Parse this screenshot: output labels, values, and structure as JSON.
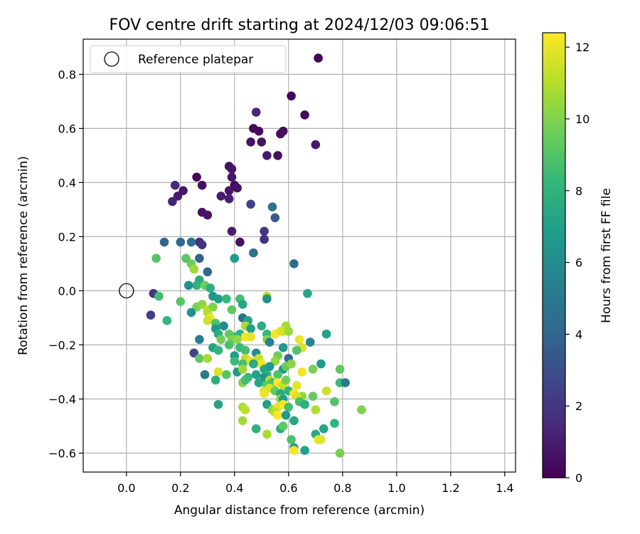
{
  "chart_data": {
    "type": "scatter",
    "title": "FOV centre drift starting at 2024/12/03 09:06:51",
    "xlabel": "Angular distance from reference (arcmin)",
    "ylabel": "Rotation from reference (arcmin)",
    "xlim": [
      -0.16,
      1.44
    ],
    "ylim": [
      -0.67,
      0.93
    ],
    "xticks": [
      0.0,
      0.2,
      0.4,
      0.6,
      0.8,
      1.0,
      1.2,
      1.4
    ],
    "xtick_labels": [
      "0.0",
      "0.2",
      "0.4",
      "0.6",
      "0.8",
      "1.0",
      "1.2",
      "1.4"
    ],
    "yticks": [
      -0.6,
      -0.4,
      -0.2,
      0.0,
      0.2,
      0.4,
      0.6,
      0.8
    ],
    "ytick_labels": [
      "−0.6",
      "−0.4",
      "−0.2",
      "0.0",
      "0.2",
      "0.4",
      "0.6",
      "0.8"
    ],
    "grid": true,
    "legend": {
      "placement": "top-left",
      "entries": [
        "Reference platepar"
      ]
    },
    "reference_point": {
      "x": 0.0,
      "y": 0.0,
      "label": "Reference platepar"
    },
    "colorbar": {
      "label": "Hours from first FF file",
      "colormap": "viridis",
      "range": [
        0,
        12.4
      ],
      "ticks": [
        0,
        2,
        4,
        6,
        8,
        10,
        12
      ],
      "tick_labels": [
        "0",
        "2",
        "4",
        "6",
        "8",
        "10",
        "12"
      ]
    },
    "colormap_stops": [
      "#440154",
      "#482878",
      "#3e4989",
      "#31688e",
      "#26828e",
      "#1f9e89",
      "#35b779",
      "#6ece58",
      "#b5de2b",
      "#fde725"
    ],
    "points": [
      [
        0.71,
        0.86,
        0.1
      ],
      [
        0.61,
        0.72,
        0.2
      ],
      [
        0.66,
        0.65,
        0.3
      ],
      [
        0.48,
        0.66,
        1.3
      ],
      [
        0.47,
        0.6,
        0.2
      ],
      [
        0.49,
        0.59,
        0.3
      ],
      [
        0.58,
        0.59,
        0.4
      ],
      [
        0.57,
        0.58,
        0.5
      ],
      [
        0.46,
        0.55,
        0.6
      ],
      [
        0.5,
        0.55,
        0.7
      ],
      [
        0.7,
        0.54,
        0.8
      ],
      [
        0.52,
        0.5,
        0.9
      ],
      [
        0.56,
        0.5,
        0.5
      ],
      [
        0.38,
        0.46,
        0.6
      ],
      [
        0.39,
        0.45,
        0.7
      ],
      [
        0.39,
        0.42,
        0.8
      ],
      [
        0.26,
        0.42,
        0.2
      ],
      [
        0.4,
        0.39,
        0.3
      ],
      [
        0.28,
        0.39,
        0.5
      ],
      [
        0.18,
        0.39,
        1.5
      ],
      [
        0.41,
        0.38,
        0.6
      ],
      [
        0.38,
        0.37,
        0.7
      ],
      [
        0.21,
        0.37,
        0.8
      ],
      [
        0.19,
        0.35,
        0.9
      ],
      [
        0.35,
        0.35,
        1.0
      ],
      [
        0.38,
        0.34,
        1.1
      ],
      [
        0.17,
        0.33,
        1.2
      ],
      [
        0.46,
        0.32,
        2.5
      ],
      [
        0.54,
        0.31,
        4.5
      ],
      [
        0.28,
        0.29,
        0.6
      ],
      [
        0.3,
        0.28,
        0.7
      ],
      [
        0.55,
        0.27,
        3.6
      ],
      [
        0.39,
        0.22,
        0.9
      ],
      [
        0.51,
        0.22,
        2.0
      ],
      [
        0.51,
        0.19,
        1.8
      ],
      [
        0.42,
        0.18,
        0.6
      ],
      [
        0.27,
        0.18,
        1.7
      ],
      [
        0.28,
        0.17,
        1.9
      ],
      [
        0.14,
        0.18,
        4.0
      ],
      [
        0.2,
        0.18,
        4.2
      ],
      [
        0.24,
        0.18,
        4.4
      ],
      [
        0.47,
        0.14,
        4.6
      ],
      [
        0.27,
        0.12,
        3.8
      ],
      [
        0.4,
        0.12,
        6.8
      ],
      [
        0.11,
        0.12,
        9.0
      ],
      [
        0.22,
        0.12,
        9.2
      ],
      [
        0.24,
        0.1,
        9.5
      ],
      [
        0.25,
        0.08,
        10.6
      ],
      [
        0.62,
        0.1,
        4.3
      ],
      [
        0.3,
        0.07,
        4.1
      ],
      [
        0.27,
        0.04,
        7.5
      ],
      [
        0.26,
        0.02,
        8.0
      ],
      [
        0.23,
        0.02,
        6.4
      ],
      [
        0.29,
        0.02,
        9.6
      ],
      [
        0.31,
        0.01,
        7.7
      ],
      [
        0.1,
        -0.01,
        2.0
      ],
      [
        0.12,
        -0.02,
        8.5
      ],
      [
        0.67,
        -0.01,
        7.2
      ],
      [
        0.32,
        -0.02,
        6.5
      ],
      [
        0.34,
        -0.03,
        7.0
      ],
      [
        0.37,
        -0.03,
        8.3
      ],
      [
        0.42,
        -0.03,
        8.6
      ],
      [
        0.52,
        -0.02,
        11.0
      ],
      [
        0.52,
        -0.03,
        6.3
      ],
      [
        0.2,
        -0.04,
        9.1
      ],
      [
        0.26,
        -0.06,
        9.8
      ],
      [
        0.28,
        -0.05,
        10.2
      ],
      [
        0.3,
        -0.07,
        11.2
      ],
      [
        0.32,
        -0.06,
        10.0
      ],
      [
        0.24,
        -0.08,
        6.2
      ],
      [
        0.3,
        -0.08,
        10.9
      ],
      [
        0.39,
        -0.07,
        9.3
      ],
      [
        0.43,
        -0.05,
        7.4
      ],
      [
        0.09,
        -0.09,
        2.3
      ],
      [
        0.31,
        -0.1,
        12.0
      ],
      [
        0.3,
        -0.11,
        11.5
      ],
      [
        0.33,
        -0.12,
        8.9
      ],
      [
        0.43,
        -0.1,
        4.7
      ],
      [
        0.45,
        -0.11,
        7.3
      ],
      [
        0.44,
        -0.13,
        10.8
      ],
      [
        0.15,
        -0.11,
        8.1
      ],
      [
        0.36,
        -0.13,
        6.0
      ],
      [
        0.33,
        -0.14,
        6.6
      ],
      [
        0.46,
        -0.14,
        7.0
      ],
      [
        0.5,
        -0.13,
        7.6
      ],
      [
        0.59,
        -0.13,
        10.7
      ],
      [
        0.52,
        -0.16,
        8.2
      ],
      [
        0.55,
        -0.16,
        12.3
      ],
      [
        0.57,
        -0.15,
        11.8
      ],
      [
        0.58,
        -0.15,
        11.6
      ],
      [
        0.6,
        -0.15,
        10.5
      ],
      [
        0.74,
        -0.16,
        7.1
      ],
      [
        0.34,
        -0.16,
        7.8
      ],
      [
        0.38,
        -0.16,
        9.4
      ],
      [
        0.4,
        -0.17,
        8.7
      ],
      [
        0.42,
        -0.16,
        7.9
      ],
      [
        0.44,
        -0.17,
        12.2
      ],
      [
        0.46,
        -0.17,
        11.9
      ],
      [
        0.27,
        -0.18,
        5.3
      ],
      [
        0.35,
        -0.18,
        9.7
      ],
      [
        0.39,
        -0.18,
        9.9
      ],
      [
        0.41,
        -0.18,
        10.3
      ],
      [
        0.52,
        -0.18,
        10.1
      ],
      [
        0.64,
        -0.18,
        12.1
      ],
      [
        0.68,
        -0.19,
        5.6
      ],
      [
        0.53,
        -0.19,
        5.5
      ],
      [
        0.38,
        -0.2,
        8.8
      ],
      [
        0.42,
        -0.21,
        8.4
      ],
      [
        0.58,
        -0.21,
        6.7
      ],
      [
        0.65,
        -0.21,
        11.7
      ],
      [
        0.25,
        -0.23,
        2.6
      ],
      [
        0.32,
        -0.21,
        7.2
      ],
      [
        0.34,
        -0.22,
        8.2
      ],
      [
        0.44,
        -0.22,
        8.6
      ],
      [
        0.48,
        -0.23,
        6.1
      ],
      [
        0.63,
        -0.22,
        9.0
      ],
      [
        0.27,
        -0.25,
        9.3
      ],
      [
        0.3,
        -0.25,
        10.7
      ],
      [
        0.4,
        -0.24,
        6.9
      ],
      [
        0.4,
        -0.26,
        8.4
      ],
      [
        0.44,
        -0.25,
        11.3
      ],
      [
        0.46,
        -0.26,
        12.0
      ],
      [
        0.49,
        -0.25,
        11.4
      ],
      [
        0.5,
        -0.27,
        12.2
      ],
      [
        0.56,
        -0.24,
        9.6
      ],
      [
        0.55,
        -0.26,
        10.4
      ],
      [
        0.6,
        -0.25,
        4.4
      ],
      [
        0.43,
        -0.27,
        8.7
      ],
      [
        0.47,
        -0.27,
        7.6
      ],
      [
        0.51,
        -0.29,
        7.4
      ],
      [
        0.53,
        -0.28,
        6.6
      ],
      [
        0.58,
        -0.29,
        6.3
      ],
      [
        0.59,
        -0.28,
        9.4
      ],
      [
        0.61,
        -0.27,
        10.2
      ],
      [
        0.72,
        -0.27,
        6.8
      ],
      [
        0.79,
        -0.29,
        9.3
      ],
      [
        0.34,
        -0.3,
        11.7
      ],
      [
        0.41,
        -0.3,
        6.8
      ],
      [
        0.43,
        -0.29,
        10.6
      ],
      [
        0.52,
        -0.31,
        7.8
      ],
      [
        0.29,
        -0.31,
        5.3
      ],
      [
        0.37,
        -0.31,
        9.0
      ],
      [
        0.45,
        -0.32,
        8.3
      ],
      [
        0.48,
        -0.31,
        7.1
      ],
      [
        0.51,
        -0.32,
        6.5
      ],
      [
        0.53,
        -0.33,
        11.0
      ],
      [
        0.56,
        -0.31,
        8.9
      ],
      [
        0.65,
        -0.3,
        12.1
      ],
      [
        0.69,
        -0.29,
        9.8
      ],
      [
        0.33,
        -0.33,
        7.7
      ],
      [
        0.43,
        -0.34,
        10.1
      ],
      [
        0.44,
        -0.33,
        8.5
      ],
      [
        0.49,
        -0.34,
        7.3
      ],
      [
        0.52,
        -0.35,
        9.2
      ],
      [
        0.54,
        -0.34,
        8.8
      ],
      [
        0.56,
        -0.34,
        12.4
      ],
      [
        0.58,
        -0.35,
        11.3
      ],
      [
        0.59,
        -0.33,
        9.7
      ],
      [
        0.63,
        -0.35,
        11.9
      ],
      [
        0.79,
        -0.34,
        8.4
      ],
      [
        0.81,
        -0.34,
        5.1
      ],
      [
        0.51,
        -0.37,
        11.6
      ],
      [
        0.53,
        -0.36,
        11.8
      ],
      [
        0.55,
        -0.37,
        9.5
      ],
      [
        0.57,
        -0.38,
        7.5
      ],
      [
        0.6,
        -0.37,
        8.0
      ],
      [
        0.62,
        -0.38,
        12.3
      ],
      [
        0.65,
        -0.39,
        10.3
      ],
      [
        0.69,
        -0.39,
        9.4
      ],
      [
        0.74,
        -0.37,
        11.5
      ],
      [
        0.51,
        -0.38,
        12.0
      ],
      [
        0.57,
        -0.4,
        10.5
      ],
      [
        0.58,
        -0.4,
        6.9
      ],
      [
        0.63,
        -0.39,
        11.7
      ],
      [
        0.64,
        -0.41,
        8.7
      ],
      [
        0.66,
        -0.42,
        7.8
      ],
      [
        0.77,
        -0.41,
        9.0
      ],
      [
        0.34,
        -0.42,
        7.2
      ],
      [
        0.43,
        -0.43,
        10.8
      ],
      [
        0.44,
        -0.44,
        11.1
      ],
      [
        0.52,
        -0.42,
        7.0
      ],
      [
        0.54,
        -0.44,
        10.4
      ],
      [
        0.56,
        -0.43,
        11.9
      ],
      [
        0.58,
        -0.42,
        12.2
      ],
      [
        0.6,
        -0.43,
        8.6
      ],
      [
        0.7,
        -0.44,
        10.9
      ],
      [
        0.87,
        -0.44,
        10.0
      ],
      [
        0.55,
        -0.45,
        11.2
      ],
      [
        0.56,
        -0.46,
        12.4
      ],
      [
        0.59,
        -0.46,
        6.7
      ],
      [
        0.43,
        -0.48,
        10.6
      ],
      [
        0.62,
        -0.48,
        7.4
      ],
      [
        0.77,
        -0.49,
        8.1
      ],
      [
        0.48,
        -0.51,
        7.9
      ],
      [
        0.52,
        -0.53,
        10.8
      ],
      [
        0.57,
        -0.51,
        7.6
      ],
      [
        0.58,
        -0.5,
        9.2
      ],
      [
        0.73,
        -0.51,
        7.3
      ],
      [
        0.61,
        -0.55,
        8.8
      ],
      [
        0.62,
        -0.58,
        6.4
      ],
      [
        0.62,
        -0.59,
        12.2
      ],
      [
        0.66,
        -0.59,
        7.0
      ],
      [
        0.7,
        -0.53,
        7.5
      ],
      [
        0.71,
        -0.55,
        12.1
      ],
      [
        0.72,
        -0.55,
        11.8
      ],
      [
        0.79,
        -0.6,
        9.8
      ]
    ]
  }
}
